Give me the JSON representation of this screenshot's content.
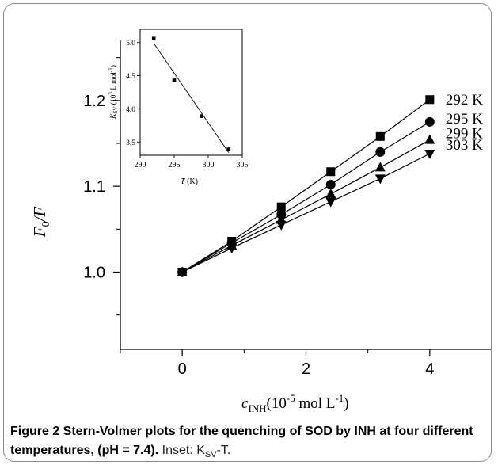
{
  "chart_data": [
    {
      "type": "line",
      "xlabel": "c",
      "xlabel_sub": "INH",
      "xlabel_unit": "(10",
      "xlabel_exp": "-5",
      "xlabel_unit2": " mol L",
      "xlabel_exp2": "-1",
      "xlabel_close": ")",
      "ylabel": "F",
      "ylabel_sub": "0",
      "ylabel_tail": "/F",
      "xlim": [
        -1,
        5
      ],
      "ylim": [
        0.91,
        1.27
      ],
      "xticks": [
        0,
        2,
        4
      ],
      "xticks_minor": [
        -1,
        1,
        3,
        5
      ],
      "yticks": [
        1.0,
        1.1,
        1.2
      ],
      "ytick_labels": [
        "1.0",
        "1.1",
        "1.2"
      ],
      "x": [
        0,
        0.8,
        1.6,
        2.4,
        3.2,
        4.0
      ],
      "series": [
        {
          "name": "292 K",
          "marker": "square",
          "values": [
            1.0,
            1.036,
            1.076,
            1.117,
            1.158,
            1.201
          ]
        },
        {
          "name": "295 K",
          "marker": "circle",
          "values": [
            1.0,
            1.034,
            1.067,
            1.102,
            1.14,
            1.175
          ]
        },
        {
          "name": "299 K",
          "marker": "triangle-up",
          "values": [
            1.0,
            1.031,
            1.061,
            1.091,
            1.122,
            1.154
          ]
        },
        {
          "name": "303 K",
          "marker": "triangle-down",
          "values": [
            1.0,
            1.028,
            1.055,
            1.082,
            1.109,
            1.138
          ]
        }
      ]
    },
    {
      "type": "scatter",
      "role": "inset",
      "xlabel": "T",
      "xlabel_unit": " (K)",
      "ylabel": "K",
      "ylabel_sub": "SV",
      "ylabel_unit": " (10",
      "ylabel_exp": "3",
      "ylabel_unit2": " L mol",
      "ylabel_exp2": "-1",
      "ylabel_close": ")",
      "xlim": [
        290,
        305
      ],
      "ylim": [
        3.3,
        5.2
      ],
      "xticks": [
        290,
        295,
        300,
        305
      ],
      "yticks": [
        3.5,
        4.0,
        4.5,
        5.0
      ],
      "ytick_labels": [
        "3.5",
        "4.0",
        "4.5",
        "5.0"
      ],
      "x": [
        292,
        295,
        299,
        303
      ],
      "values": [
        5.06,
        4.43,
        3.89,
        3.39
      ],
      "fit_line": {
        "x": [
          292,
          303
        ],
        "y": [
          4.99,
          3.34
        ]
      }
    }
  ],
  "caption": {
    "title": "Figure 2 Stern-Volmer plots for the quenching of SOD by INH at four different temperatures, (pH = 7.4).",
    "inset_note": "Inset: K",
    "inset_note_sub": "SV",
    "inset_note_tail": "-T."
  }
}
